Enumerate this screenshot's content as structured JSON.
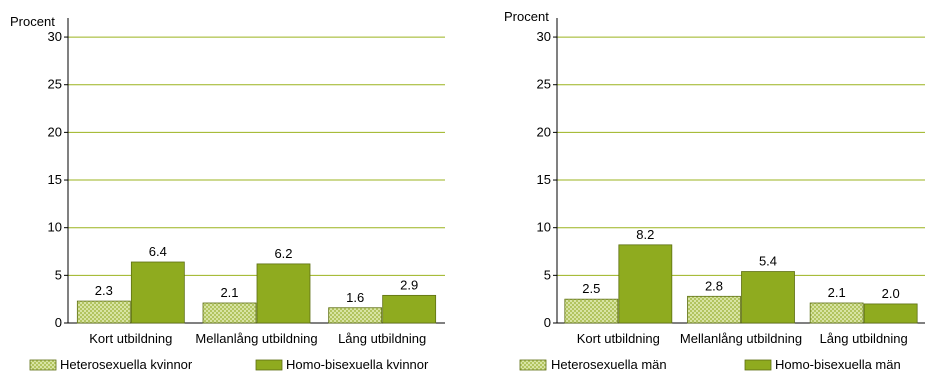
{
  "colors": {
    "grid": "#9bb31f",
    "hetero_fill": "#d8e4a4",
    "hetero_hatch": "#b2c460",
    "homo_fill": "#8fab1f",
    "bar_stroke": "#5d6f12",
    "axis": "#000000"
  },
  "chart_data": [
    {
      "type": "bar",
      "ylabel": "Procent",
      "ylim": [
        0,
        32
      ],
      "yticks": [
        0,
        5,
        10,
        15,
        20,
        25,
        30
      ],
      "grid": true,
      "legend_position": "bottom",
      "categories": [
        "Kort utbildning",
        "Mellanlång utbildning",
        "Lång utbildning"
      ],
      "series": [
        {
          "name": "Heterosexuella kvinnor",
          "values": [
            2.3,
            2.1,
            1.6
          ],
          "labels": [
            "2.3",
            "2.1",
            "1.6"
          ]
        },
        {
          "name": "Homo-bisexuella kvinnor",
          "values": [
            6.4,
            6.2,
            2.9
          ],
          "labels": [
            "6.4",
            "6.2",
            "2.9"
          ]
        }
      ]
    },
    {
      "type": "bar",
      "ylabel": "Procent",
      "ylim": [
        0,
        32
      ],
      "yticks": [
        0,
        5,
        10,
        15,
        20,
        25,
        30
      ],
      "grid": true,
      "legend_position": "bottom",
      "categories": [
        "Kort utbildning",
        "Mellanlång utbildning",
        "Lång utbildning"
      ],
      "series": [
        {
          "name": "Heterosexuella män",
          "values": [
            2.5,
            2.8,
            2.1
          ],
          "labels": [
            "2.5",
            "2.8",
            "2.1"
          ]
        },
        {
          "name": "Homo-bisexuella män",
          "values": [
            8.2,
            5.4,
            2.0
          ],
          "labels": [
            "8.2",
            "5.4",
            "2.0"
          ]
        }
      ]
    }
  ]
}
